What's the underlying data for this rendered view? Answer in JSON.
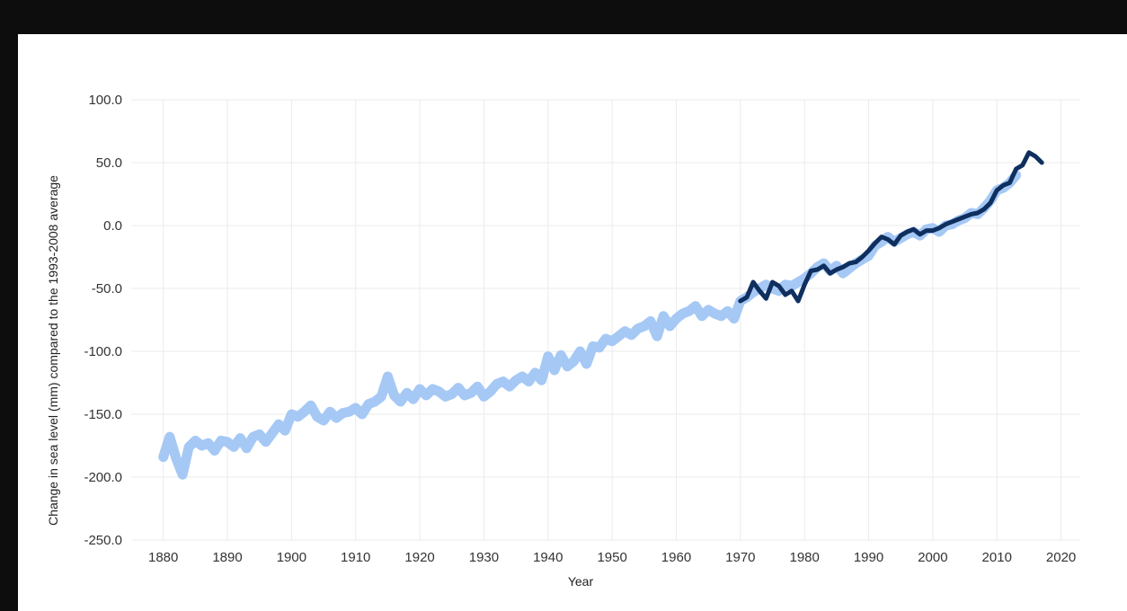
{
  "chart_data": {
    "type": "line",
    "title": "",
    "xlabel": "Year",
    "ylabel": "Change in sea level (mm) compared to the 1993-2008 average",
    "xlim": [
      1875,
      2023
    ],
    "ylim": [
      -250,
      100
    ],
    "x_ticks": [
      "1880",
      "1890",
      "1900",
      "1910",
      "1920",
      "1930",
      "1940",
      "1950",
      "1960",
      "1970",
      "1980",
      "1990",
      "2000",
      "2010",
      "2020"
    ],
    "y_ticks": [
      "100.0",
      "50.0",
      "0.0",
      "-50.0",
      "-100.0",
      "-150.0",
      "-200.0",
      "-250.0"
    ],
    "grid": true,
    "legend": "none",
    "series": [
      {
        "color": "#a5c8f5",
        "style": "band",
        "x": [
          1880,
          1881,
          1882,
          1883,
          1884,
          1885,
          1886,
          1887,
          1888,
          1889,
          1890,
          1891,
          1892,
          1893,
          1894,
          1895,
          1896,
          1897,
          1898,
          1899,
          1900,
          1901,
          1902,
          1903,
          1904,
          1905,
          1906,
          1907,
          1908,
          1909,
          1910,
          1911,
          1912,
          1913,
          1914,
          1915,
          1916,
          1917,
          1918,
          1919,
          1920,
          1921,
          1922,
          1923,
          1924,
          1925,
          1926,
          1927,
          1928,
          1929,
          1930,
          1931,
          1932,
          1933,
          1934,
          1935,
          1936,
          1937,
          1938,
          1939,
          1940,
          1941,
          1942,
          1943,
          1944,
          1945,
          1946,
          1947,
          1948,
          1949,
          1950,
          1951,
          1952,
          1953,
          1954,
          1955,
          1956,
          1957,
          1958,
          1959,
          1960,
          1961,
          1962,
          1963,
          1964,
          1965,
          1966,
          1967,
          1968,
          1969,
          1970,
          1971,
          1972,
          1973,
          1974,
          1975,
          1976,
          1977,
          1978,
          1979,
          1980,
          1981,
          1982,
          1983,
          1984,
          1985,
          1986,
          1987,
          1988,
          1989,
          1990,
          1991,
          1992,
          1993,
          1994,
          1995,
          1996,
          1997,
          1998,
          1999,
          2000,
          2001,
          2002,
          2003,
          2004,
          2005,
          2006,
          2007,
          2008,
          2009,
          2010,
          2011,
          2012,
          2013
        ],
        "y": [
          -184,
          -168,
          -185,
          -198,
          -176,
          -171,
          -175,
          -173,
          -179,
          -171,
          -172,
          -176,
          -169,
          -177,
          -168,
          -166,
          -172,
          -165,
          -158,
          -163,
          -150,
          -152,
          -148,
          -143,
          -152,
          -155,
          -148,
          -153,
          -149,
          -148,
          -145,
          -150,
          -142,
          -140,
          -136,
          -120,
          -135,
          -140,
          -133,
          -138,
          -130,
          -135,
          -130,
          -132,
          -136,
          -134,
          -129,
          -135,
          -133,
          -128,
          -136,
          -132,
          -126,
          -124,
          -128,
          -123,
          -120,
          -124,
          -117,
          -123,
          -104,
          -115,
          -103,
          -112,
          -108,
          -100,
          -110,
          -96,
          -97,
          -90,
          -92,
          -88,
          -84,
          -87,
          -82,
          -80,
          -76,
          -88,
          -72,
          -80,
          -74,
          -70,
          -68,
          -64,
          -72,
          -67,
          -70,
          -72,
          -68,
          -74,
          -60,
          -57,
          -53,
          -50,
          -47,
          -50,
          -52,
          -47,
          -48,
          -45,
          -42,
          -38,
          -33,
          -30,
          -36,
          -32,
          -38,
          -34,
          -30,
          -27,
          -24,
          -16,
          -13,
          -9,
          -13,
          -10,
          -7,
          -5,
          -8,
          -3,
          -2,
          -5,
          0,
          1,
          4,
          6,
          10,
          9,
          14,
          20,
          28,
          30,
          34,
          40
        ]
      },
      {
        "color": "#0f2f5f",
        "style": "line",
        "x": [
          1970,
          1971,
          1972,
          1973,
          1974,
          1975,
          1976,
          1977,
          1978,
          1979,
          1980,
          1981,
          1982,
          1983,
          1984,
          1985,
          1986,
          1987,
          1988,
          1989,
          1990,
          1991,
          1992,
          1993,
          1994,
          1995,
          1996,
          1997,
          1998,
          1999,
          2000,
          2001,
          2002,
          2003,
          2004,
          2005,
          2006,
          2007,
          2008,
          2009,
          2010,
          2011,
          2012,
          2013,
          2014,
          2015,
          2016,
          2017
        ],
        "y": [
          -60,
          -57,
          -45,
          -52,
          -58,
          -45,
          -48,
          -55,
          -52,
          -60,
          -47,
          -36,
          -35,
          -32,
          -38,
          -35,
          -33,
          -30,
          -29,
          -25,
          -20,
          -14,
          -9,
          -11,
          -15,
          -8,
          -5,
          -3,
          -7,
          -4,
          -4,
          -2,
          1,
          3,
          5,
          7,
          9,
          10,
          13,
          18,
          28,
          32,
          34,
          45,
          48,
          58,
          55,
          50
        ]
      }
    ]
  }
}
